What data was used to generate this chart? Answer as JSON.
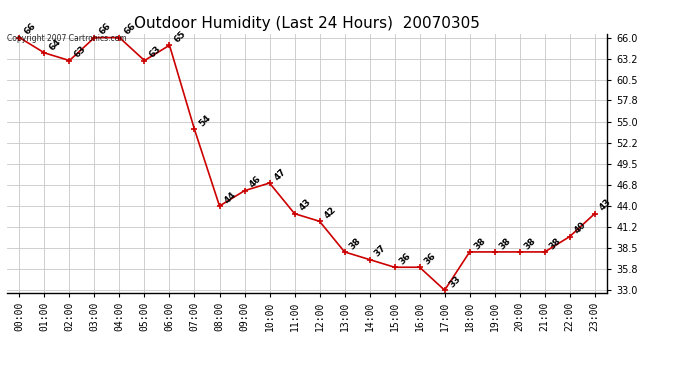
{
  "title": "Outdoor Humidity (Last 24 Hours)  20070305",
  "copyright_text": "Copyright 2007 Cartronics.com",
  "hours": [
    "00:00",
    "01:00",
    "02:00",
    "03:00",
    "04:00",
    "05:00",
    "06:00",
    "07:00",
    "08:00",
    "09:00",
    "10:00",
    "11:00",
    "12:00",
    "13:00",
    "14:00",
    "15:00",
    "16:00",
    "17:00",
    "18:00",
    "19:00",
    "20:00",
    "21:00",
    "22:00",
    "23:00"
  ],
  "values": [
    66,
    64,
    63,
    66,
    66,
    63,
    65,
    54,
    44,
    46,
    47,
    43,
    42,
    38,
    37,
    36,
    36,
    33,
    38,
    38,
    38,
    38,
    40,
    43
  ],
  "line_color": "#cc0000",
  "marker_color": "#cc0000",
  "bg_color": "#ffffff",
  "grid_color": "#c8c8c8",
  "ylim_min": 33.0,
  "ylim_max": 66.0,
  "yticks": [
    33.0,
    35.8,
    38.5,
    41.2,
    44.0,
    46.8,
    49.5,
    52.2,
    55.0,
    57.8,
    60.5,
    63.2,
    66.0
  ],
  "title_fontsize": 11,
  "label_fontsize": 6.5,
  "tick_fontsize": 7
}
